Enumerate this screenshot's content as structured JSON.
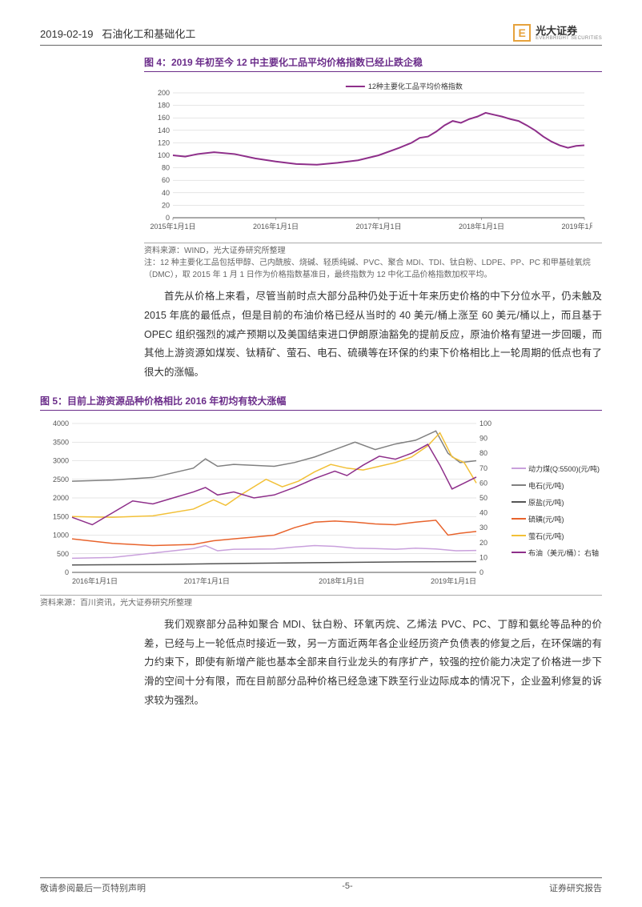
{
  "header": {
    "date": "2019-02-19",
    "section": "石油化工和基础化工",
    "company_cn": "光大证券",
    "company_en": "EVERBRIGHT SECURITIES"
  },
  "figure4": {
    "title": "图 4：2019 年初至今 12 中主要化工品平均价格指数已经止跌企稳",
    "type": "line",
    "legend_label": "12种主要化工品平均价格指数",
    "x_labels": [
      "2015年1月1日",
      "2016年1月1日",
      "2017年1月1日",
      "2018年1月1日",
      "2019年1月1日"
    ],
    "ylim": [
      0,
      200
    ],
    "ytick_step": 20,
    "line_color": "#8e2f8a",
    "line_width": 2,
    "grid_color": "#cccccc",
    "background_color": "#ffffff",
    "axis_fontsize": 9,
    "data": [
      [
        0,
        100
      ],
      [
        3,
        98
      ],
      [
        6,
        102
      ],
      [
        10,
        105
      ],
      [
        15,
        102
      ],
      [
        20,
        95
      ],
      [
        25,
        90
      ],
      [
        30,
        86
      ],
      [
        35,
        85
      ],
      [
        40,
        88
      ],
      [
        45,
        92
      ],
      [
        50,
        100
      ],
      [
        55,
        112
      ],
      [
        58,
        120
      ],
      [
        60,
        128
      ],
      [
        62,
        130
      ],
      [
        64,
        138
      ],
      [
        66,
        148
      ],
      [
        68,
        155
      ],
      [
        70,
        152
      ],
      [
        72,
        158
      ],
      [
        74,
        162
      ],
      [
        76,
        168
      ],
      [
        78,
        165
      ],
      [
        80,
        162
      ],
      [
        82,
        158
      ],
      [
        84,
        155
      ],
      [
        86,
        148
      ],
      [
        88,
        140
      ],
      [
        90,
        130
      ],
      [
        92,
        122
      ],
      [
        94,
        116
      ],
      [
        96,
        112
      ],
      [
        98,
        115
      ],
      [
        100,
        116
      ]
    ],
    "source": "资料来源：WIND，光大证券研究所整理",
    "note": "注：12 种主要化工品包括甲醇、己内酰胺、烧碱、轻质纯碱、PVC、聚合 MDI、TDI、钛白粉、LDPE、PP、PC 和甲基硅氧烷（DMC），取 2015 年 1 月 1 日作为价格指数基准日，最终指数为 12 中化工品价格指数加权平均。"
  },
  "paragraph1": "首先从价格上来看，尽管当前时点大部分品种仍处于近十年来历史价格的中下分位水平，仍未触及 2015 年底的最低点，但是目前的布油价格已经从当时的 40 美元/桶上涨至 60 美元/桶以上，而且基于 OPEC 组织强烈的减产预期以及美国结束进口伊朗原油豁免的提前反应，原油价格有望进一步回暖，而其他上游资源如煤炭、钛精矿、萤石、电石、硫磺等在环保的约束下价格相比上一轮周期的低点也有了很大的涨幅。",
  "figure5": {
    "title": "图 5：目前上游资源品种价格相比 2016 年初均有较大涨幅",
    "type": "line-dual-axis",
    "x_labels": [
      "2016年1月1日",
      "2017年1月1日",
      "2018年1月1日",
      "2019年1月1日"
    ],
    "y1_lim": [
      0,
      4000
    ],
    "y1_tick_step": 500,
    "y2_lim": [
      0,
      100
    ],
    "y2_tick_step": 10,
    "grid_color": "#cccccc",
    "background_color": "#ffffff",
    "axis_fontsize": 9,
    "line_width": 1.5,
    "series": [
      {
        "name": "动力煤(Q:5500)(元/吨)",
        "color": "#c9a0dc",
        "axis": "left",
        "data": [
          [
            0,
            380
          ],
          [
            10,
            400
          ],
          [
            20,
            520
          ],
          [
            30,
            640
          ],
          [
            33,
            720
          ],
          [
            36,
            580
          ],
          [
            40,
            620
          ],
          [
            50,
            630
          ],
          [
            55,
            680
          ],
          [
            60,
            720
          ],
          [
            65,
            700
          ],
          [
            70,
            650
          ],
          [
            75,
            640
          ],
          [
            80,
            620
          ],
          [
            85,
            650
          ],
          [
            90,
            630
          ],
          [
            95,
            580
          ],
          [
            100,
            590
          ]
        ]
      },
      {
        "name": "电石(元/吨)",
        "color": "#808080",
        "axis": "left",
        "data": [
          [
            0,
            2450
          ],
          [
            10,
            2480
          ],
          [
            20,
            2550
          ],
          [
            30,
            2800
          ],
          [
            33,
            3050
          ],
          [
            36,
            2850
          ],
          [
            40,
            2900
          ],
          [
            50,
            2850
          ],
          [
            55,
            2950
          ],
          [
            60,
            3100
          ],
          [
            65,
            3300
          ],
          [
            70,
            3500
          ],
          [
            75,
            3300
          ],
          [
            80,
            3450
          ],
          [
            85,
            3550
          ],
          [
            90,
            3800
          ],
          [
            93,
            3200
          ],
          [
            96,
            2950
          ],
          [
            100,
            3000
          ]
        ]
      },
      {
        "name": "原盐(元/吨)",
        "color": "#555555",
        "axis": "left",
        "data": [
          [
            0,
            200
          ],
          [
            20,
            210
          ],
          [
            40,
            240
          ],
          [
            60,
            260
          ],
          [
            80,
            280
          ],
          [
            100,
            290
          ]
        ]
      },
      {
        "name": "硫磺(元/吨)",
        "color": "#e8632c",
        "axis": "left",
        "data": [
          [
            0,
            900
          ],
          [
            10,
            780
          ],
          [
            20,
            720
          ],
          [
            30,
            750
          ],
          [
            35,
            850
          ],
          [
            40,
            900
          ],
          [
            45,
            950
          ],
          [
            50,
            1000
          ],
          [
            55,
            1200
          ],
          [
            60,
            1350
          ],
          [
            65,
            1380
          ],
          [
            70,
            1350
          ],
          [
            75,
            1300
          ],
          [
            80,
            1280
          ],
          [
            85,
            1350
          ],
          [
            90,
            1400
          ],
          [
            93,
            1000
          ],
          [
            96,
            1050
          ],
          [
            100,
            1100
          ]
        ]
      },
      {
        "name": "萤石(元/吨)",
        "color": "#f2c037",
        "axis": "left",
        "data": [
          [
            0,
            1500
          ],
          [
            10,
            1480
          ],
          [
            20,
            1520
          ],
          [
            30,
            1700
          ],
          [
            35,
            1950
          ],
          [
            38,
            1800
          ],
          [
            42,
            2100
          ],
          [
            48,
            2500
          ],
          [
            52,
            2300
          ],
          [
            56,
            2450
          ],
          [
            60,
            2700
          ],
          [
            64,
            2900
          ],
          [
            68,
            2800
          ],
          [
            72,
            2750
          ],
          [
            76,
            2850
          ],
          [
            80,
            2950
          ],
          [
            84,
            3100
          ],
          [
            88,
            3400
          ],
          [
            91,
            3750
          ],
          [
            94,
            3100
          ],
          [
            97,
            2950
          ],
          [
            100,
            2400
          ]
        ]
      },
      {
        "name": "布油（美元/桶）：右轴",
        "color": "#8e2f8a",
        "axis": "right",
        "data": [
          [
            0,
            37
          ],
          [
            5,
            32
          ],
          [
            10,
            40
          ],
          [
            15,
            48
          ],
          [
            20,
            46
          ],
          [
            25,
            50
          ],
          [
            30,
            54
          ],
          [
            33,
            57
          ],
          [
            36,
            52
          ],
          [
            40,
            54
          ],
          [
            45,
            50
          ],
          [
            50,
            52
          ],
          [
            55,
            57
          ],
          [
            60,
            63
          ],
          [
            65,
            68
          ],
          [
            68,
            65
          ],
          [
            72,
            72
          ],
          [
            76,
            78
          ],
          [
            80,
            76
          ],
          [
            84,
            80
          ],
          [
            88,
            86
          ],
          [
            91,
            72
          ],
          [
            94,
            56
          ],
          [
            97,
            60
          ],
          [
            100,
            64
          ]
        ]
      }
    ],
    "source": "资料来源：百川资讯，光大证券研究所整理"
  },
  "paragraph2": "我们观察部分品种如聚合 MDI、钛白粉、环氧丙烷、乙烯法 PVC、PC、丁醇和氨纶等品种的价差，已经与上一轮低点时接近一致，另一方面近两年各企业经历资产负债表的修复之后，在环保端的有力约束下，即使有新增产能也基本全部来自行业龙头的有序扩产，较强的控价能力决定了价格进一步下滑的空间十分有限，而在目前部分品种价格已经急速下跌至行业边际成本的情况下，企业盈利修复的诉求较为强烈。",
  "footer": {
    "left": "敬请参阅最后一页特别声明",
    "center": "-5-",
    "right": "证券研究报告"
  }
}
